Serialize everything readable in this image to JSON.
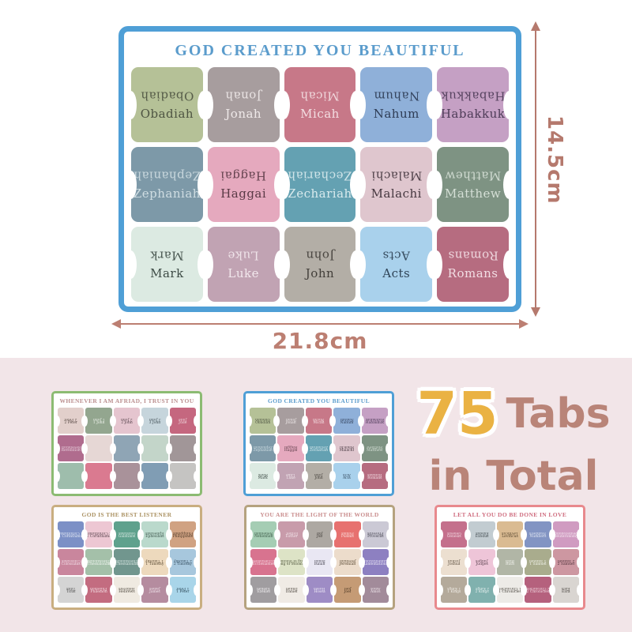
{
  "dimensions": {
    "width": "21.8cm",
    "height": "14.5cm",
    "arrow_color": "#b5796d",
    "arrow_color2": "#bc7f72"
  },
  "totals": {
    "number": "75",
    "line1": "Tabs",
    "line2": "in Total",
    "number_color": "#eab243",
    "text_color": "#b98478"
  },
  "background": {
    "top": "#ffffff",
    "bottom": "#f2e5e8"
  },
  "main_card": {
    "title": "GOD CREATED YOU BEAUTIFUL",
    "border_color": "#4f9fd6",
    "title_color": "#5b9ccc",
    "rows": [
      [
        {
          "label": "Obadiah",
          "bg": "#b5c197",
          "fg": "#4e5442"
        },
        {
          "label": "Jonah",
          "bg": "#a79d9e",
          "fg": "#efe9e9"
        },
        {
          "label": "Micah",
          "bg": "#c77888",
          "fg": "#f3dee2"
        },
        {
          "label": "Nahum",
          "bg": "#8fb0d9",
          "fg": "#2e3c55"
        },
        {
          "label": "Habakkuk",
          "bg": "#c5a0c4",
          "fg": "#4e3c58"
        }
      ],
      [
        {
          "label": "Zephaniah",
          "bg": "#7d99a8",
          "fg": "#cfdde2"
        },
        {
          "label": "Haggai",
          "bg": "#e5a9be",
          "fg": "#5a3a46"
        },
        {
          "label": "Zechariah",
          "bg": "#64a1b2",
          "fg": "#d9eaed"
        },
        {
          "label": "Malachi",
          "bg": "#dfc6ce",
          "fg": "#463840"
        },
        {
          "label": "Matthew",
          "bg": "#7e9383",
          "fg": "#d5dfd6"
        }
      ],
      [
        {
          "label": "Mark",
          "bg": "#dceae2",
          "fg": "#3d4b45"
        },
        {
          "label": "Luke",
          "bg": "#c1a3b3",
          "fg": "#f2e8ed"
        },
        {
          "label": "John",
          "bg": "#b3aea6",
          "fg": "#423e39"
        },
        {
          "label": "Acts",
          "bg": "#a9d1ec",
          "fg": "#2f4356"
        },
        {
          "label": "Romans",
          "bg": "#b66c80",
          "fg": "#f2dee4"
        }
      ]
    ]
  },
  "sheets": [
    {
      "title": "WHENEVER I AM AFRIAD, I TRUST IN YOU",
      "border_color": "#8cbb72",
      "title_color": "#bb8f8f",
      "rows": [
        [
          {
            "label": "2 Peter",
            "bg": "#e2cfcb",
            "fg": "#574843"
          },
          {
            "label": "1 John",
            "bg": "#93a68f",
            "fg": "#eff3ed"
          },
          {
            "label": "2 John",
            "bg": "#e5c5cf",
            "fg": "#523f48"
          },
          {
            "label": "3 John",
            "bg": "#c6d5dc",
            "fg": "#3d4a51"
          },
          {
            "label": "Jude",
            "bg": "#c5677f",
            "fg": "#f0d7dd"
          }
        ],
        [
          {
            "label": "Revelation",
            "bg": "#b06c8e",
            "fg": "#e8d2de"
          },
          {
            "label": "",
            "bg": "#e6d7d5",
            "fg": "#e6d7d5"
          },
          {
            "label": "",
            "bg": "#8fa5b5",
            "fg": "#8fa5b5"
          },
          {
            "label": "",
            "bg": "#c3d5c9",
            "fg": "#c3d5c9"
          },
          {
            "label": "",
            "bg": "#a19698",
            "fg": "#a19698"
          }
        ],
        [
          {
            "label": "",
            "bg": "#9ebdac",
            "fg": "#9ebdac"
          },
          {
            "label": "",
            "bg": "#da7a90",
            "fg": "#da7a90"
          },
          {
            "label": "",
            "bg": "#a9929a",
            "fg": "#a9929a"
          },
          {
            "label": "",
            "bg": "#809db4",
            "fg": "#809db4"
          },
          {
            "label": "",
            "bg": "#c5c4c2",
            "fg": "#c5c4c2"
          }
        ]
      ]
    },
    {
      "title": "GOD CREATED YOU BEAUTIFUL",
      "border_color": "#4f9fd6",
      "title_color": "#5b9ccc",
      "rows": [
        [
          {
            "label": "Obadiah",
            "bg": "#b5c197",
            "fg": "#4e5442"
          },
          {
            "label": "Jonah",
            "bg": "#a79d9e",
            "fg": "#efe9e9"
          },
          {
            "label": "Micah",
            "bg": "#c77888",
            "fg": "#f3dee2"
          },
          {
            "label": "Nahum",
            "bg": "#8fb0d9",
            "fg": "#2e3c55"
          },
          {
            "label": "Habakkuk",
            "bg": "#c5a0c4",
            "fg": "#4e3c58"
          }
        ],
        [
          {
            "label": "Zephaniah",
            "bg": "#7d99a8",
            "fg": "#cfdde2"
          },
          {
            "label": "Haggai",
            "bg": "#e5a9be",
            "fg": "#5a3a46"
          },
          {
            "label": "Zechariah",
            "bg": "#64a1b2",
            "fg": "#d9eaed"
          },
          {
            "label": "Malachi",
            "bg": "#dfc6ce",
            "fg": "#463840"
          },
          {
            "label": "Matthew",
            "bg": "#7e9383",
            "fg": "#d5dfd6"
          }
        ],
        [
          {
            "label": "Mark",
            "bg": "#dceae2",
            "fg": "#3d4b45"
          },
          {
            "label": "Luke",
            "bg": "#c1a3b3",
            "fg": "#f2e8ed"
          },
          {
            "label": "John",
            "bg": "#b3aea6",
            "fg": "#423e39"
          },
          {
            "label": "Acts",
            "bg": "#a9d1ec",
            "fg": "#2f4356"
          },
          {
            "label": "Romans",
            "bg": "#b66c80",
            "fg": "#f2dee4"
          }
        ]
      ]
    },
    {
      "title": "GOD IS THE BEST LISTENER",
      "border_color": "#c9ae80",
      "title_color": "#ab9263",
      "rows": [
        [
          {
            "label": "1 Corinthians",
            "bg": "#7c90c6",
            "fg": "#e6ebf5"
          },
          {
            "label": "2 Corinthians",
            "bg": "#edc7d3",
            "fg": "#523e47"
          },
          {
            "label": "Galatians",
            "bg": "#5fa18d",
            "fg": "#dcebe5"
          },
          {
            "label": "Ephesians",
            "bg": "#bad9cc",
            "fg": "#3c544a"
          },
          {
            "label": "Philippians",
            "bg": "#d0a282",
            "fg": "#4e3a2a"
          }
        ],
        [
          {
            "label": "Colossians",
            "bg": "#c9869d",
            "fg": "#f2e1e9"
          },
          {
            "label": "1 Thessalonians",
            "bg": "#a4c0a9",
            "fg": "#f3f7f3"
          },
          {
            "label": "2 Thessalonians",
            "bg": "#71968e",
            "fg": "#dde9e6"
          },
          {
            "label": "1 Timothy",
            "bg": "#edd9bd",
            "fg": "#55452e"
          },
          {
            "label": "2 Timothy",
            "bg": "#a7c7dd",
            "fg": "#324a5c"
          }
        ],
        [
          {
            "label": "Titus",
            "bg": "#d4d4d4",
            "fg": "#4a4a4a"
          },
          {
            "label": "Philemon",
            "bg": "#c36c80",
            "fg": "#f2dce2"
          },
          {
            "label": "Hebrews",
            "bg": "#efeae1",
            "fg": "#4d473d"
          },
          {
            "label": "James",
            "bg": "#b58c9f",
            "fg": "#f1e6ec"
          },
          {
            "label": "1 Peter",
            "bg": "#a9d5e9",
            "fg": "#2f4a5a"
          }
        ]
      ]
    },
    {
      "title": "YOU ARE THE LIGHT OF THE WORLD",
      "border_color": "#b5a27f",
      "title_color": "#c98d8d",
      "rows": [
        [
          {
            "label": "Nehemiah",
            "bg": "#a5cdb4",
            "fg": "#3c5a47"
          },
          {
            "label": "Esther",
            "bg": "#c89baa",
            "fg": "#f1e3e9"
          },
          {
            "label": "Job",
            "bg": "#ada8a2",
            "fg": "#3f3b36"
          },
          {
            "label": "Psalms",
            "bg": "#e7716f",
            "fg": "#fbe3e2"
          },
          {
            "label": "Proverbs",
            "bg": "#cbc9d5",
            "fg": "#42414c"
          }
        ],
        [
          {
            "label": "Ecclesiastes",
            "bg": "#d8738f",
            "fg": "#f6dde5"
          },
          {
            "label": "Song of Solomon",
            "bg": "#dde3c6",
            "fg": "#4b5138"
          },
          {
            "label": "Isaiah",
            "bg": "#e9e7f3",
            "fg": "#45434f"
          },
          {
            "label": "Jeremiah",
            "bg": "#ecdccb",
            "fg": "#55452f"
          },
          {
            "label": "Lamentations",
            "bg": "#8d80c1",
            "fg": "#ece9f6"
          }
        ],
        [
          {
            "label": "Ezekiel",
            "bg": "#a09da0",
            "fg": "#efedef"
          },
          {
            "label": "Daniel",
            "bg": "#f0ebe5",
            "fg": "#4c463e"
          },
          {
            "label": "Hosea",
            "bg": "#9e8cc5",
            "fg": "#efebf7"
          },
          {
            "label": "Joel",
            "bg": "#c59b75",
            "fg": "#46331f"
          },
          {
            "label": "Amos",
            "bg": "#a28b9a",
            "fg": "#efe7ec"
          }
        ]
      ]
    },
    {
      "title": "LET ALL YOU DO BE DONE IN LOVE",
      "border_color": "#e8898d",
      "title_color": "#cf6d7f",
      "rows": [
        [
          {
            "label": "Genesis",
            "bg": "#c4708c",
            "fg": "#f3dce4"
          },
          {
            "label": "Exodus",
            "bg": "#c2ccd1",
            "fg": "#3c454a"
          },
          {
            "label": "Leviticus",
            "bg": "#dabb92",
            "fg": "#52412a"
          },
          {
            "label": "Numbers",
            "bg": "#8294c3",
            "fg": "#e3e8f3"
          },
          {
            "label": "Deuteronomy",
            "bg": "#d09bc1",
            "fg": "#f6eaf2"
          }
        ],
        [
          {
            "label": "Joshua",
            "bg": "#ecdfd0",
            "fg": "#544736"
          },
          {
            "label": "Judges",
            "bg": "#eec5d8",
            "fg": "#543c49"
          },
          {
            "label": "Ruth",
            "bg": "#b1b6a6",
            "fg": "#f2f3ee"
          },
          {
            "label": "1 Samuel",
            "bg": "#a9ac8d",
            "fg": "#f3f4ec"
          },
          {
            "label": "2 Samuel",
            "bg": "#cd97a1",
            "fg": "#4e323a"
          }
        ],
        [
          {
            "label": "1 Kings",
            "bg": "#b4aa9b",
            "fg": "#f2efe9"
          },
          {
            "label": "2 Kings",
            "bg": "#80b1ae",
            "fg": "#e7f1f0"
          },
          {
            "label": "1 Chronicles",
            "bg": "#edebe7",
            "fg": "#4a463f"
          },
          {
            "label": "2 Chronicles",
            "bg": "#b5617d",
            "fg": "#f1d9e1"
          },
          {
            "label": "Ezra",
            "bg": "#d9d5d1",
            "fg": "#443f3a"
          }
        ]
      ]
    }
  ]
}
